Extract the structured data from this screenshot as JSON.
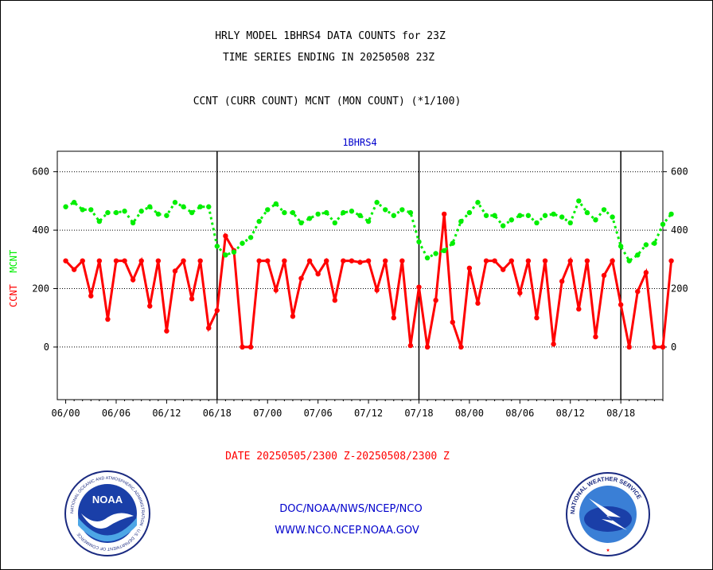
{
  "header": {
    "line1": "HRLY MODEL 1BHRS4 DATA COUNTS for 23Z",
    "line2": "TIME SERIES ENDING IN 20250508 23Z",
    "line3": "CCNT (CURR COUNT) MCNT (MON COUNT) (*1/100)"
  },
  "panel_label": "1BHRS4",
  "ylabel": {
    "ccnt": "CCNT",
    "mcnt": "MCNT"
  },
  "date_range": "DATE 20250505/2300 Z-20250508/2300 Z",
  "footer": {
    "line1": "DOC/NOAA/NWS/NCEP/NCO",
    "line2": "WWW.NCO.NCEP.NOAA.GOV"
  },
  "logos": {
    "noaa": {
      "center_text": "NOAA",
      "ring_text": "NATIONAL OCEANIC AND ATMOSPHERIC ADMINISTRATION · U.S. DEPARTMENT OF COMMERCE"
    },
    "nws": {
      "ring_text": "NATIONAL WEATHER SERVICE"
    }
  },
  "colors": {
    "ccnt": "#ff0000",
    "mcnt": "#00ee00",
    "text": "#000000",
    "blue": "#0000cc"
  },
  "chart_data": {
    "type": "line",
    "ylim": [
      -180,
      670
    ],
    "yticks": [
      0,
      200,
      400,
      600
    ],
    "grid": "horizontal dotted",
    "x_tick_labels": [
      "06/00",
      "06/06",
      "06/12",
      "06/18",
      "07/00",
      "07/06",
      "07/12",
      "07/18",
      "08/00",
      "08/06",
      "08/12",
      "08/18"
    ],
    "x_start_hour_offset": -1,
    "x_end_hour_offset": 71,
    "day_boundaries_hours": [
      18,
      42,
      66
    ],
    "series": [
      {
        "name": "CCNT",
        "color": "#ff0000",
        "values": [
          295,
          265,
          295,
          175,
          295,
          95,
          295,
          295,
          230,
          295,
          140,
          295,
          55,
          260,
          295,
          165,
          295,
          65,
          125,
          380,
          330,
          0,
          0,
          295,
          295,
          195,
          295,
          105,
          235,
          295,
          250,
          295,
          160,
          295,
          295,
          290,
          295,
          195,
          295,
          100,
          295,
          5,
          205,
          0,
          160,
          455,
          85,
          0,
          270,
          150,
          295,
          295,
          265,
          295,
          185,
          295,
          100,
          295,
          10,
          225,
          295,
          130,
          295,
          35,
          245,
          295,
          145,
          0,
          190,
          255,
          0,
          0,
          295
        ]
      },
      {
        "name": "MCNT",
        "color": "#00ee00",
        "values": [
          480,
          495,
          470,
          470,
          430,
          460,
          460,
          465,
          425,
          465,
          480,
          455,
          450,
          495,
          480,
          460,
          480,
          480,
          345,
          315,
          325,
          355,
          375,
          430,
          470,
          490,
          460,
          460,
          425,
          440,
          455,
          460,
          425,
          460,
          465,
          450,
          430,
          495,
          470,
          450,
          470,
          460,
          360,
          305,
          320,
          330,
          355,
          430,
          460,
          495,
          450,
          450,
          415,
          435,
          450,
          450,
          425,
          450,
          455,
          445,
          425,
          500,
          460,
          435,
          470,
          445,
          345,
          295,
          315,
          350,
          355,
          420,
          455
        ]
      }
    ]
  }
}
